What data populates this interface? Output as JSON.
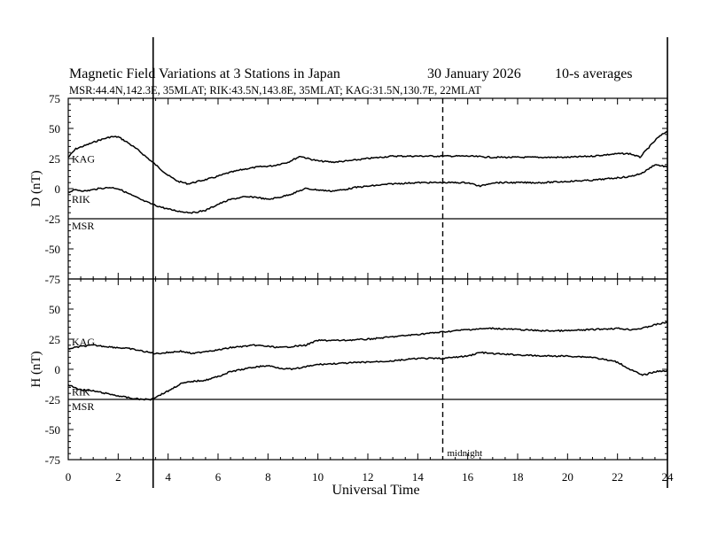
{
  "chart_data": {
    "type": "line",
    "title": "Magnetic Field Variations at 3 Stations in Japan",
    "date": "30 January  2026",
    "averaging": "10-s averages",
    "subtitle": "MSR:44.4N,142.3E, 35MLAT;  RIK:43.5N,143.8E, 35MLAT;  KAG:31.5N,130.7E, 22MLAT",
    "xlabel": "Universal Time",
    "xlim": [
      0,
      24
    ],
    "xticks": [
      "0",
      "2",
      "4",
      "6",
      "8",
      "10",
      "12",
      "14",
      "16",
      "18",
      "20",
      "22",
      "24"
    ],
    "yticks": [
      "75",
      "50",
      "25",
      "0",
      "-25",
      "-50",
      "-75"
    ],
    "midnight_label": "midnight",
    "midnight_ut": 15,
    "marker_ut": 3.4,
    "panels": [
      {
        "ylabel": "D (nT)",
        "ylim": [
          -75,
          75
        ],
        "series": [
          {
            "name": "KAG",
            "x": [
              0,
              0.3,
              0.7,
              1.2,
              1.7,
              2.0,
              2.4,
              2.8,
              3.2,
              3.6,
              4.0,
              4.4,
              4.8,
              5.2,
              5.8,
              6.4,
              7.0,
              7.6,
              8.2,
              8.8,
              9.3,
              9.6,
              10.0,
              10.6,
              11.2,
              12.0,
              13.0,
              14.0,
              15.0,
              16.0,
              17.0,
              18.0,
              19.0,
              20.0,
              21.0,
              22.0,
              22.5,
              22.9,
              23.2,
              23.6,
              24.0
            ],
            "values": [
              26,
              33,
              36,
              40,
              43,
              43,
              38,
              32,
              25,
              18,
              11,
              6,
              4,
              6,
              9,
              13,
              16,
              18,
              19,
              22,
              27,
              25,
              23,
              22,
              23,
              25,
              27,
              27,
              27,
              27,
              26,
              26,
              26,
              26,
              27,
              29,
              29,
              26,
              33,
              42,
              48
            ]
          },
          {
            "name": "RIK",
            "x": [
              0,
              0.3,
              0.7,
              1.2,
              1.7,
              2.0,
              2.5,
              3.0,
              3.5,
              4.0,
              4.5,
              5.0,
              5.5,
              6.0,
              6.5,
              7.0,
              7.5,
              8.0,
              8.5,
              9.0,
              9.5,
              10.0,
              10.5,
              11.0,
              11.5,
              12.0,
              13.0,
              14.0,
              15.0,
              16.0,
              16.5,
              17.0,
              18.0,
              19.0,
              20.0,
              21.0,
              22.0,
              22.5,
              23.0,
              23.5,
              24.0
            ],
            "values": [
              -3,
              -1,
              -2,
              0,
              1,
              0,
              -5,
              -10,
              -14,
              -17,
              -19,
              -20,
              -18,
              -13,
              -9,
              -7,
              -7,
              -9,
              -7,
              -4,
              0,
              -1,
              -2,
              -1,
              1,
              2,
              4,
              5,
              5,
              5,
              2,
              5,
              5,
              5,
              6,
              7,
              9,
              10,
              13,
              20,
              18
            ]
          },
          {
            "name": "MSR",
            "x": [
              0,
              24
            ],
            "values": [
              -25,
              -25
            ]
          }
        ]
      },
      {
        "ylabel": "H (nT)",
        "ylim": [
          -75,
          75
        ],
        "series": [
          {
            "name": "KAG",
            "x": [
              0,
              0.5,
              1.0,
              1.5,
              2.0,
              2.5,
              3.0,
              3.5,
              4.0,
              4.5,
              5.0,
              5.5,
              6.0,
              6.5,
              7.0,
              7.5,
              8.0,
              8.5,
              9.0,
              9.5,
              10.0,
              11.0,
              12.0,
              13.0,
              14.0,
              15.0,
              16.0,
              17.0,
              18.0,
              19.0,
              20.0,
              21.0,
              22.0,
              22.5,
              23.0,
              23.5,
              24.0
            ],
            "values": [
              17,
              19,
              20,
              19,
              18,
              17,
              15,
              13,
              14,
              15,
              13,
              15,
              16,
              18,
              19,
              20,
              19,
              18,
              19,
              20,
              24,
              24,
              25,
              27,
              29,
              31,
              33,
              34,
              33,
              32,
              32,
              33,
              34,
              33,
              34,
              37,
              39
            ]
          },
          {
            "name": "RIK",
            "x": [
              0,
              0.5,
              1.0,
              1.5,
              2.0,
              2.5,
              3.0,
              3.3,
              3.6,
              4.0,
              4.5,
              5.0,
              5.5,
              6.0,
              6.5,
              7.0,
              7.5,
              8.0,
              8.5,
              9.0,
              9.5,
              10.0,
              11.0,
              12.0,
              13.0,
              14.0,
              15.0,
              16.0,
              16.5,
              17.0,
              18.0,
              19.0,
              20.0,
              21.0,
              22.0,
              22.5,
              23.0,
              23.5,
              24.0
            ],
            "values": [
              -13,
              -17,
              -18,
              -20,
              -22,
              -24,
              -25,
              -25,
              -22,
              -18,
              -12,
              -10,
              -9,
              -6,
              -2,
              0,
              2,
              3,
              1,
              0,
              2,
              4,
              5,
              6,
              7,
              9,
              9,
              11,
              14,
              13,
              12,
              11,
              11,
              10,
              6,
              0,
              -5,
              -2,
              -1
            ]
          },
          {
            "name": "MSR",
            "x": [
              0,
              24
            ],
            "values": [
              -25,
              -25
            ]
          }
        ]
      }
    ]
  }
}
